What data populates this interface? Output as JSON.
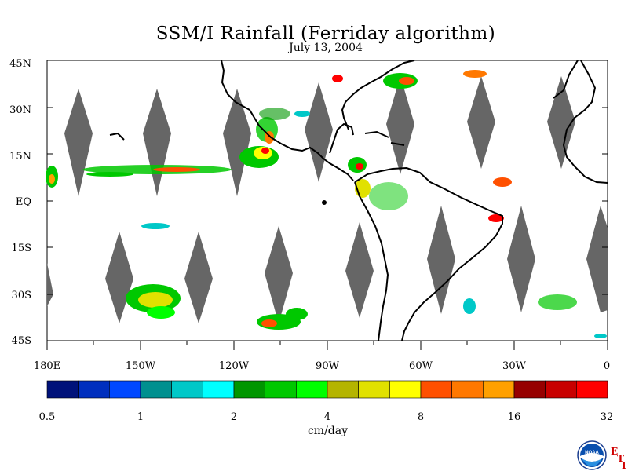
{
  "title": "SSM/I Rainfall (Ferriday algorithm)",
  "subtitle": "July 13, 2004",
  "map": {
    "lat_labels": [
      "45N",
      "30N",
      "15N",
      "EQ",
      "15S",
      "30S",
      "45S"
    ],
    "lon_labels": [
      "180E",
      "150W",
      "120W",
      "90W",
      "60W",
      "30W",
      "0"
    ],
    "swath_gap_color": "#666666",
    "land_outline_color": "#000000"
  },
  "colorbar": {
    "colors": [
      "#00127a",
      "#002fbe",
      "#0048ff",
      "#00908f",
      "#00c8c8",
      "#00ffff",
      "#009600",
      "#00c800",
      "#00ff00",
      "#b4b400",
      "#e1e100",
      "#ffff00",
      "#ff5000",
      "#ff7800",
      "#ffa000",
      "#960000",
      "#c80000",
      "#ff0000"
    ],
    "tick_labels": [
      "0.5",
      "1",
      "2",
      "4",
      "8",
      "16",
      "32"
    ],
    "unit": "cm/day"
  },
  "logo": {
    "text": "NOAA",
    "letters": [
      "E",
      "T",
      "I"
    ]
  }
}
